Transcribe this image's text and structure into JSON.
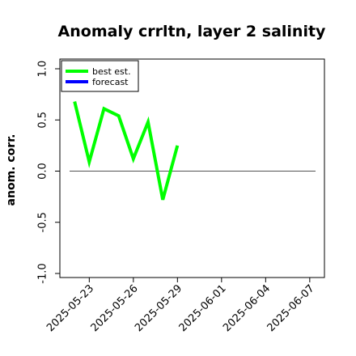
{
  "chart_data": {
    "type": "line",
    "title": "Anomaly crrltn, layer 2 salinity",
    "xlabel": "",
    "ylabel": "anom. corr.",
    "ylim": [
      -1.0,
      1.0
    ],
    "yticks": [
      -1.0,
      -0.5,
      0.0,
      0.5,
      1.0
    ],
    "ytick_labels": [
      "-1.0",
      "-0.5",
      "0.0",
      "0.5",
      "1.0"
    ],
    "xlim": [
      "2025-05-21",
      "2025-06-08"
    ],
    "xticks": [
      "2025-05-23",
      "2025-05-26",
      "2025-05-29",
      "2025-06-01",
      "2025-06-04",
      "2025-06-07"
    ],
    "xtick_labels": [
      "2025-05-23",
      "2025-05-26",
      "2025-05-29",
      "2025-06-01",
      "2025-06-04",
      "2025-06-07"
    ],
    "highlight_xtick": "2025-05-29",
    "highlight_color": "#228b22",
    "reference_line": 0.0,
    "legend_position": "top-left",
    "series": [
      {
        "name": "best est.",
        "color": "#00ff00",
        "x": [
          "2025-05-22",
          "2025-05-23",
          "2025-05-24",
          "2025-05-25",
          "2025-05-26",
          "2025-05-27",
          "2025-05-28",
          "2025-05-29"
        ],
        "values": [
          0.68,
          0.09,
          0.61,
          0.54,
          0.12,
          0.48,
          -0.28,
          0.25
        ]
      },
      {
        "name": "forecast",
        "color": "#0000ff",
        "x": [],
        "values": []
      }
    ]
  }
}
